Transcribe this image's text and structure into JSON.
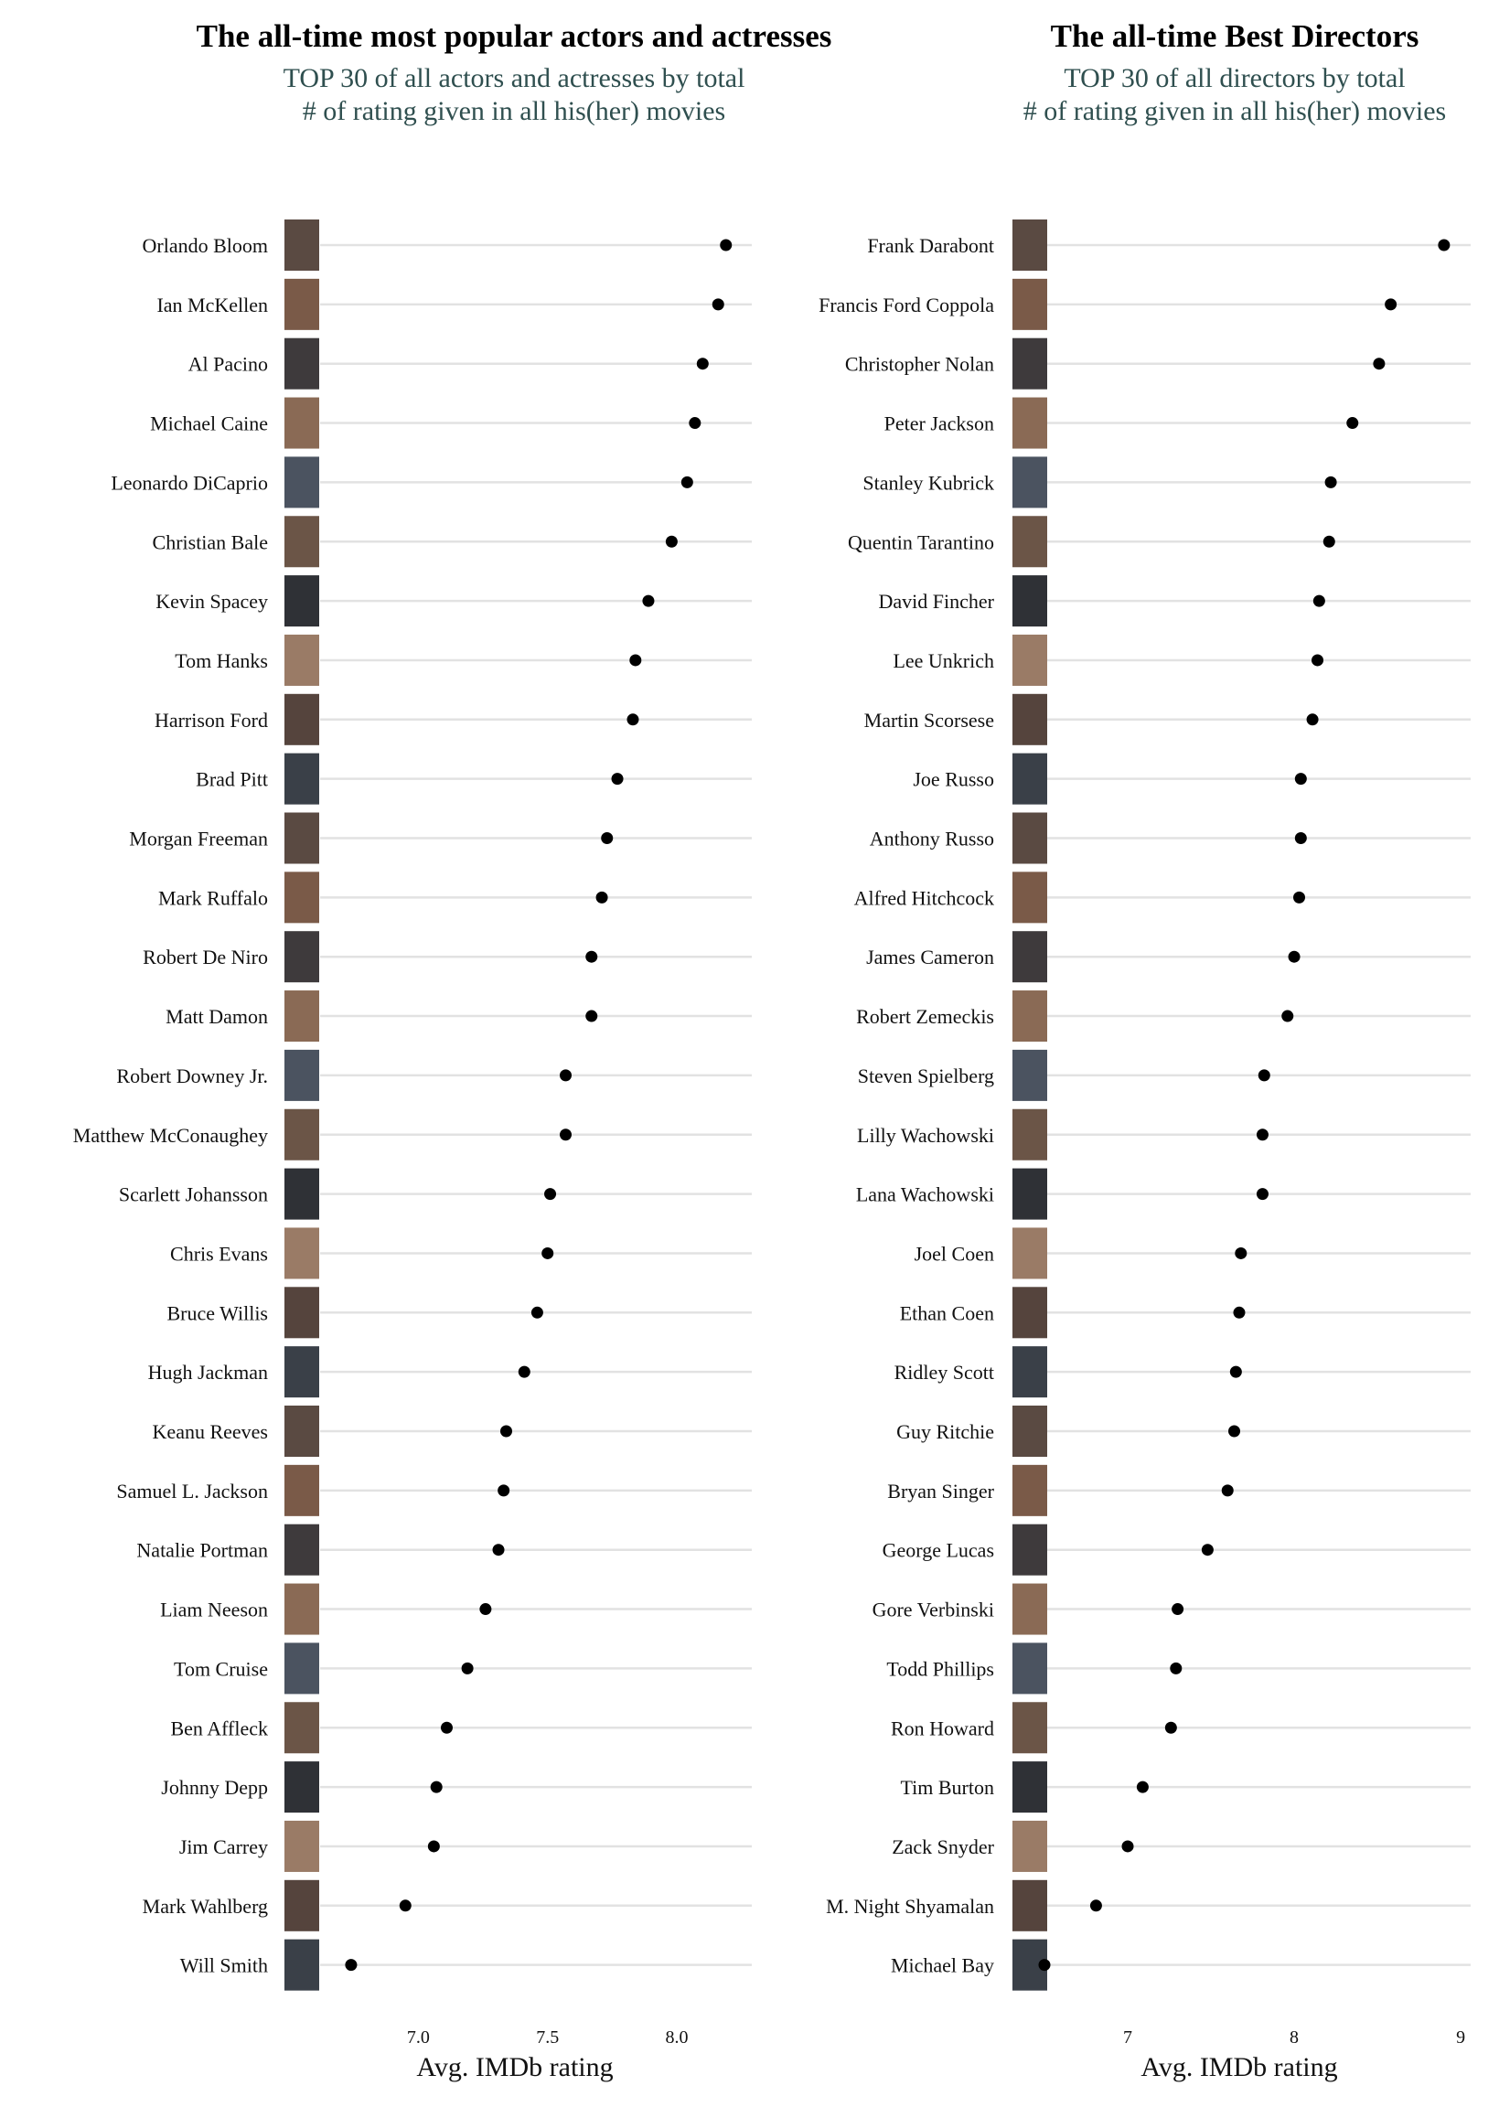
{
  "chart_data": [
    {
      "type": "scatter",
      "title": "The all-time most popular actors and actresses",
      "subtitle_lines": [
        "TOP 30 of all actors and actresses by total",
        "# of rating given in all his(her) movies"
      ],
      "xlabel": "Avg. IMDb rating",
      "xlim": [
        6.62,
        8.29
      ],
      "xticks": [
        7.0,
        7.5,
        8.0
      ],
      "xtick_labels": [
        "7.0",
        "7.5",
        "8.0"
      ],
      "grid": "horizontal",
      "point_color": "#000000",
      "categories": [
        "Orlando Bloom",
        "Ian McKellen",
        "Al Pacino",
        "Michael Caine",
        "Leonardo DiCaprio",
        "Christian Bale",
        "Kevin Spacey",
        "Tom Hanks",
        "Harrison Ford",
        "Brad Pitt",
        "Morgan Freeman",
        "Mark Ruffalo",
        "Robert De Niro",
        "Matt Damon",
        "Robert Downey Jr.",
        "Matthew McConaughey",
        "Scarlett Johansson",
        "Chris Evans",
        "Bruce Willis",
        "Hugh Jackman",
        "Keanu Reeves",
        "Samuel L. Jackson",
        "Natalie Portman",
        "Liam Neeson",
        "Tom Cruise",
        "Ben Affleck",
        "Johnny Depp",
        "Jim Carrey",
        "Mark Wahlberg",
        "Will Smith"
      ],
      "values": [
        8.19,
        8.16,
        8.1,
        8.07,
        8.04,
        7.98,
        7.89,
        7.84,
        7.83,
        7.77,
        7.73,
        7.71,
        7.67,
        7.67,
        7.57,
        7.57,
        7.51,
        7.5,
        7.46,
        7.41,
        7.34,
        7.33,
        7.31,
        7.26,
        7.19,
        7.11,
        7.07,
        7.06,
        6.95,
        6.74
      ]
    },
    {
      "type": "scatter",
      "title": "The all-time Best Directors",
      "subtitle_lines": [
        "TOP 30 of all directors by total",
        "# of rating given in all his(her) movies"
      ],
      "xlabel": "Avg. IMDb rating",
      "xlim": [
        6.5,
        9.06
      ],
      "xticks": [
        7,
        8,
        9
      ],
      "xtick_labels": [
        "7",
        "8",
        "9"
      ],
      "grid": "horizontal",
      "point_color": "#000000",
      "categories": [
        "Frank Darabont",
        "Francis Ford Coppola",
        "Christopher Nolan",
        "Peter Jackson",
        "Stanley Kubrick",
        "Quentin Tarantino",
        "David Fincher",
        "Lee Unkrich",
        "Martin Scorsese",
        "Joe Russo",
        "Anthony Russo",
        "Alfred Hitchcock",
        "James Cameron",
        "Robert Zemeckis",
        "Steven Spielberg",
        "Lilly Wachowski",
        "Lana Wachowski",
        "Joel Coen",
        "Ethan Coen",
        "Ridley Scott",
        "Guy Ritchie",
        "Bryan Singer",
        "George Lucas",
        "Gore Verbinski",
        "Todd Phillips",
        "Ron Howard",
        "Tim Burton",
        "Zack Snyder",
        "M. Night Shyamalan",
        "Michael Bay"
      ],
      "values": [
        8.9,
        8.58,
        8.51,
        8.35,
        8.22,
        8.21,
        8.15,
        8.14,
        8.11,
        8.04,
        8.04,
        8.03,
        8.0,
        7.96,
        7.82,
        7.81,
        7.81,
        7.68,
        7.67,
        7.65,
        7.64,
        7.6,
        7.48,
        7.3,
        7.29,
        7.26,
        7.09,
        7.0,
        6.81,
        6.5
      ]
    }
  ]
}
